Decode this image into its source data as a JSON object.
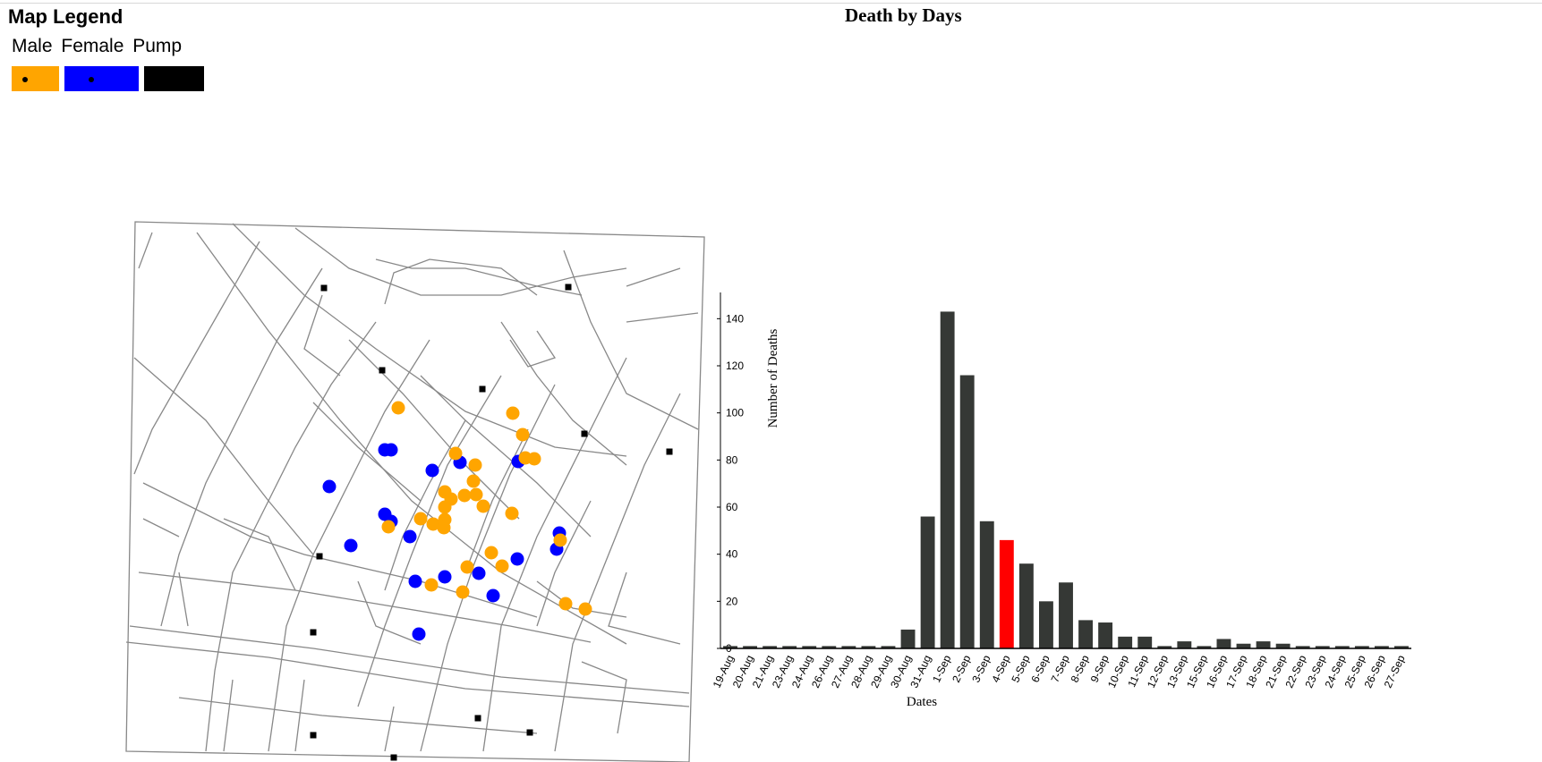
{
  "legend": {
    "title": "Map Legend",
    "labels": [
      "Male",
      "Female",
      "Pump"
    ],
    "colors": {
      "male": "#FFA500",
      "female": "#0000FF",
      "pump": "#000000"
    }
  },
  "chart_data": {
    "type": "bar",
    "title": "Death by Days",
    "xlabel": "Dates",
    "ylabel": "Number of Deaths",
    "ylim": [
      0,
      150
    ],
    "yticks": [
      0,
      20,
      40,
      60,
      80,
      100,
      120,
      140
    ],
    "categories": [
      "19-Aug",
      "20-Aug",
      "21-Aug",
      "23-Aug",
      "24-Aug",
      "26-Aug",
      "27-Aug",
      "28-Aug",
      "29-Aug",
      "30-Aug",
      "31-Aug",
      "1-Sep",
      "2-Sep",
      "3-Sep",
      "4-Sep",
      "5-Sep",
      "6-Sep",
      "7-Sep",
      "8-Sep",
      "9-Sep",
      "10-Sep",
      "11-Sep",
      "12-Sep",
      "13-Sep",
      "15-Sep",
      "16-Sep",
      "17-Sep",
      "18-Sep",
      "21-Sep",
      "22-Sep",
      "23-Sep",
      "24-Sep",
      "25-Sep",
      "26-Sep",
      "27-Sep"
    ],
    "values": [
      1,
      1,
      1,
      1,
      1,
      1,
      1,
      1,
      1,
      8,
      56,
      143,
      116,
      54,
      46,
      36,
      20,
      28,
      12,
      11,
      5,
      5,
      1,
      3,
      1,
      4,
      2,
      3,
      2,
      1,
      1,
      1,
      1,
      1,
      1
    ],
    "highlight_index": 14,
    "colors": {
      "bar": "#353835",
      "highlight": "#FF0000"
    },
    "grid": false
  }
}
